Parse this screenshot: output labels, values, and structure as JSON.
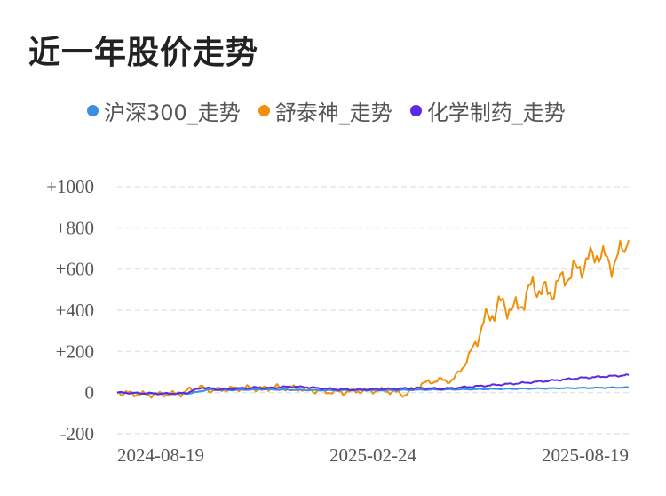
{
  "title": "近一年股价走势",
  "chart_data": {
    "type": "line",
    "title": "近一年股价走势",
    "xlabel": "",
    "ylabel": "",
    "x_tick_labels": [
      "2024-08-19",
      "2025-02-24",
      "2025-08-19"
    ],
    "y_tick_labels": [
      "+1000",
      "+800",
      "+600",
      "+400",
      "+200",
      "0",
      "-200"
    ],
    "y_ticks": [
      1000,
      800,
      600,
      400,
      200,
      0,
      -200
    ],
    "ylim": [
      -200,
      1000
    ],
    "grid": "horizontal-dashed",
    "legend_position": "top",
    "series": [
      {
        "name": "沪深300_走势",
        "color": "#3a8ee6",
        "values": [
          0,
          -3,
          -5,
          -6,
          -4,
          15,
          12,
          14,
          16,
          14,
          13,
          12,
          11,
          12,
          11,
          12,
          13,
          14,
          15,
          16,
          17,
          18,
          19,
          20,
          21,
          22,
          23,
          24,
          25
        ]
      },
      {
        "name": "舒泰神_走势",
        "color": "#f0900a",
        "values": [
          0,
          -5,
          -10,
          -8,
          -5,
          28,
          10,
          18,
          22,
          18,
          26,
          24,
          12,
          5,
          2,
          8,
          10,
          8,
          -10,
          40,
          60,
          58,
          170,
          350,
          430,
          400,
          520,
          480,
          560,
          610,
          680,
          620,
          740
        ]
      },
      {
        "name": "化学制药_走势",
        "color": "#5a2be0",
        "values": [
          0,
          -2,
          -4,
          -5,
          -3,
          25,
          15,
          20,
          24,
          22,
          28,
          27,
          20,
          16,
          14,
          16,
          18,
          20,
          22,
          18,
          24,
          30,
          36,
          42,
          48,
          55,
          62,
          70,
          75,
          80,
          85
        ]
      }
    ]
  }
}
